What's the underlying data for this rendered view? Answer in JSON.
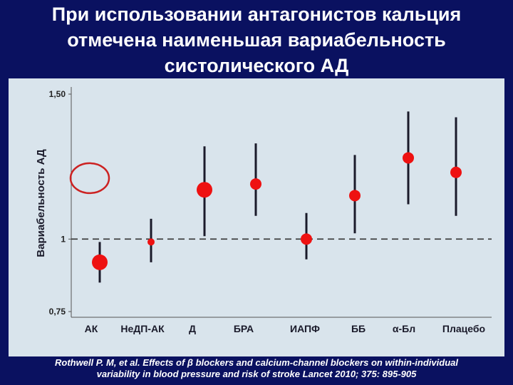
{
  "title_lines": [
    "При использовании антагонистов кальция",
    "отмечена  наименьшая вариабельность",
    "систолического АД"
  ],
  "citation_lines": [
    "Rothwell P. M,  et al. Effects of β blockers and calcium-channel blockers on within-individual",
    "variability in blood pressure and risk of stroke Lancet 2010; 375: 895-905"
  ],
  "colors": {
    "background": "#0a1160",
    "panel": "#d9e4ec",
    "point": "#ee1111",
    "whisker": "#1a1a2a",
    "highlight_circle": "#cc2222"
  },
  "chart_data": {
    "type": "scatter",
    "title": "",
    "ylabel": "Вариабельность АД",
    "xlabel": "",
    "ylim": [
      0.75,
      1.5
    ],
    "yticks": [
      {
        "value": 1.5,
        "label": "1,50"
      },
      {
        "value": 1.0,
        "label": "1"
      },
      {
        "value": 0.75,
        "label": "0,75"
      }
    ],
    "reference_line": 1.0,
    "grid": false,
    "highlight": "АК",
    "categories": [
      "АК",
      "НеДП-АК",
      "Д",
      "БРА",
      "ИАПФ",
      "ББ",
      "α-Бл",
      "Плацебо"
    ],
    "points": [
      {
        "label": "АК",
        "value": 0.92,
        "low": 0.85,
        "high": 0.99,
        "marker": "large"
      },
      {
        "label": "НеДП-АК",
        "value": 0.99,
        "low": 0.92,
        "high": 1.07,
        "marker": "small"
      },
      {
        "label": "Д",
        "value": 1.17,
        "low": 1.01,
        "high": 1.32,
        "marker": "large"
      },
      {
        "label": "БРА",
        "value": 1.19,
        "low": 1.08,
        "high": 1.33,
        "marker": "medium"
      },
      {
        "label": "ИАПФ",
        "value": 1.0,
        "low": 0.93,
        "high": 1.09,
        "marker": "medium"
      },
      {
        "label": "ББ",
        "value": 1.15,
        "low": 1.02,
        "high": 1.29,
        "marker": "medium"
      },
      {
        "label": "α-Бл",
        "value": 1.28,
        "low": 1.12,
        "high": 1.44,
        "marker": "medium"
      },
      {
        "label": "Плацебо",
        "value": 1.23,
        "low": 1.08,
        "high": 1.42,
        "marker": "medium"
      }
    ]
  }
}
